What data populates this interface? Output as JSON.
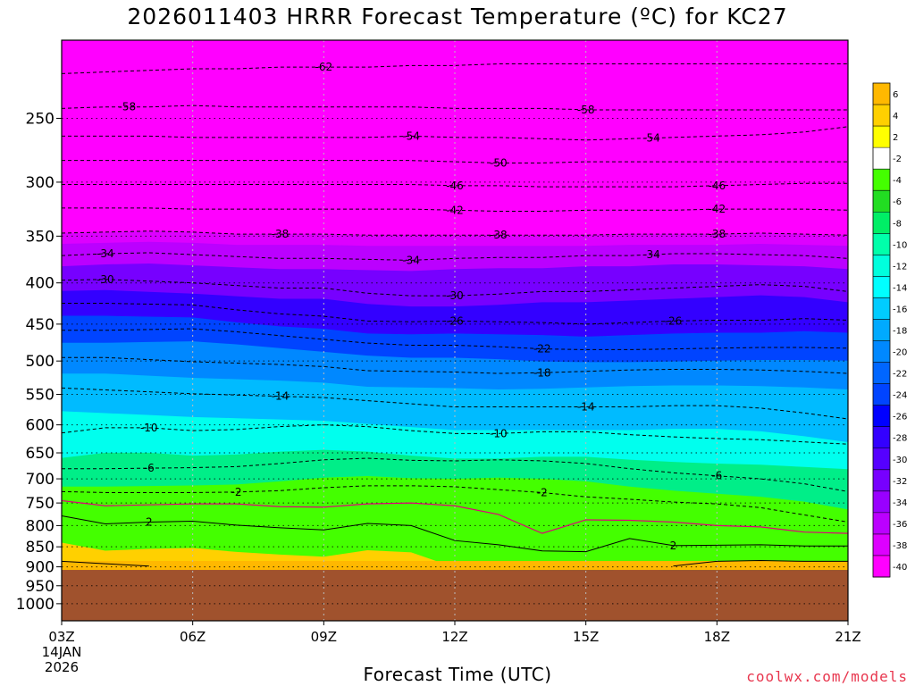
{
  "title": "2026011403 HRRR Forecast Temperature (ºC) for KC27",
  "credit": "coolwx.com/models",
  "chart_data": {
    "type": "heatmap",
    "title": "2026011403 HRRR Forecast Temperature (ºC) for KC27",
    "xlabel": "Forecast Time (UTC)",
    "ylabel": "",
    "x_ticks": [
      "03Z",
      "06Z",
      "09Z",
      "12Z",
      "15Z",
      "18Z",
      "21Z"
    ],
    "x_start_label": [
      "03Z",
      "14JAN",
      "2026"
    ],
    "xlim": [
      3,
      21
    ],
    "y_ticks": [
      250,
      300,
      350,
      400,
      450,
      500,
      550,
      600,
      650,
      700,
      750,
      800,
      850,
      900,
      950,
      1000
    ],
    "ylim_hPa": [
      1050,
      200
    ],
    "y_scale": "log pressure",
    "grid": true,
    "colorbar": {
      "placement": "right",
      "labels": [
        "6",
        "4",
        "2",
        "-2",
        "-4",
        "-6",
        "-8",
        "-10",
        "-12",
        "-14",
        "-16",
        "-18",
        "-20",
        "-22",
        "-24",
        "-26",
        "-28",
        "-30",
        "-32",
        "-34",
        "-36",
        "-38",
        "-40"
      ],
      "colors": [
        "#ffb800",
        "#ffd000",
        "#ffff00",
        "#ffffff",
        "#44ff00",
        "#22dd22",
        "#00ee66",
        "#00ffaa",
        "#00ffdd",
        "#00ffff",
        "#00ccff",
        "#00aaff",
        "#0088ff",
        "#0066ff",
        "#0044ff",
        "#0000ff",
        "#3300ff",
        "#5500ff",
        "#7700ff",
        "#9900ff",
        "#bb00ff",
        "#dd00ff",
        "#ff00ff"
      ]
    },
    "contours": [
      {
        "label": "-62",
        "x": [
          3,
          4,
          5,
          6,
          7,
          8,
          9,
          10,
          11,
          12,
          13,
          14,
          15,
          16,
          17,
          18,
          19,
          20,
          21
        ],
        "y": [
          220,
          219,
          218,
          217,
          217,
          216,
          216,
          216,
          215,
          215,
          214,
          214,
          214,
          214,
          214,
          214,
          214,
          214,
          214
        ]
      },
      {
        "label": "-58",
        "x": [
          3,
          4,
          5,
          6,
          7,
          8,
          9,
          10,
          11,
          12,
          13,
          14,
          15,
          16,
          17,
          18,
          19,
          20,
          21
        ],
        "y": [
          243,
          242,
          242,
          241,
          242,
          242,
          242,
          242,
          242,
          243,
          243,
          243,
          244,
          244,
          244,
          244,
          244,
          244,
          244
        ]
      },
      {
        "label": "-54",
        "x": [
          3,
          4,
          5,
          6,
          7,
          8,
          9,
          10,
          11,
          12,
          13,
          14,
          15,
          16,
          17,
          18,
          19,
          20,
          21
        ],
        "y": [
          263,
          263,
          263,
          264,
          264,
          264,
          264,
          264,
          263,
          264,
          264,
          265,
          266,
          265,
          264,
          263,
          262,
          260,
          256
        ]
      },
      {
        "label": "-50",
        "x": [
          3,
          4,
          5,
          6,
          7,
          8,
          9,
          10,
          11,
          12,
          13,
          14,
          15,
          16,
          17,
          18,
          19,
          20,
          21
        ],
        "y": [
          282,
          282,
          282,
          282,
          282,
          282,
          282,
          282,
          282,
          283,
          284,
          284,
          283,
          283,
          283,
          283,
          283,
          283,
          283
        ]
      },
      {
        "label": "-46",
        "x": [
          3,
          4,
          5,
          6,
          7,
          8,
          9,
          10,
          11,
          12,
          13,
          14,
          15,
          16,
          17,
          18,
          19,
          20,
          21
        ],
        "y": [
          302,
          302,
          302,
          302,
          302,
          302,
          302,
          302,
          302,
          303,
          303,
          304,
          304,
          304,
          304,
          303,
          302,
          301,
          301
        ]
      },
      {
        "label": "-42",
        "x": [
          3,
          4,
          5,
          6,
          7,
          8,
          9,
          10,
          11,
          12,
          13,
          14,
          15,
          16,
          17,
          18,
          19,
          20,
          21
        ],
        "y": [
          323,
          323,
          323,
          324,
          324,
          324,
          324,
          324,
          324,
          325,
          326,
          326,
          325,
          325,
          325,
          324,
          324,
          324,
          325
        ]
      },
      {
        "label": "-38",
        "x": [
          3,
          4,
          5,
          6,
          7,
          8,
          9,
          10,
          11,
          12,
          13,
          14,
          15,
          16,
          17,
          18,
          19,
          20,
          21
        ],
        "y": [
          347,
          346,
          345,
          346,
          348,
          348,
          348,
          349,
          349,
          349,
          349,
          349,
          349,
          348,
          348,
          348,
          347,
          348,
          349
        ]
      },
      {
        "label": "-34",
        "x": [
          3,
          4,
          5,
          6,
          7,
          8,
          9,
          10,
          11,
          12,
          13,
          14,
          15,
          16,
          17,
          18,
          19,
          20,
          21
        ],
        "y": [
          370,
          368,
          367,
          369,
          371,
          373,
          373,
          374,
          375,
          373,
          372,
          372,
          370,
          370,
          368,
          368,
          369,
          370,
          373
        ]
      },
      {
        "label": "-30",
        "x": [
          3,
          4,
          5,
          6,
          7,
          8,
          9,
          10,
          11,
          12,
          13,
          14,
          15,
          16,
          17,
          18,
          19,
          20,
          21
        ],
        "y": [
          397,
          396,
          398,
          400,
          403,
          406,
          406,
          412,
          415,
          415,
          413,
          410,
          410,
          408,
          406,
          404,
          402,
          404,
          410
        ]
      },
      {
        "label": "-26",
        "x": [
          3,
          4,
          5,
          6,
          7,
          8,
          9,
          10,
          11,
          12,
          13,
          14,
          15,
          16,
          17,
          18,
          19,
          20,
          21
        ],
        "y": [
          424,
          424,
          425,
          426,
          432,
          437,
          440,
          446,
          447,
          446,
          447,
          448,
          450,
          448,
          446,
          445,
          445,
          443,
          445
        ]
      },
      {
        "label": "-22",
        "x": [
          3,
          4,
          5,
          6,
          7,
          8,
          9,
          10,
          11,
          12,
          13,
          14,
          15,
          16,
          17,
          18,
          19,
          20,
          21
        ],
        "y": [
          458,
          458,
          457,
          456,
          460,
          465,
          470,
          475,
          478,
          478,
          480,
          483,
          484,
          484,
          483,
          482,
          481,
          481,
          482
        ]
      },
      {
        "label": "-18",
        "x": [
          3,
          4,
          5,
          6,
          7,
          8,
          9,
          10,
          11,
          12,
          13,
          14,
          15,
          16,
          17,
          18,
          19,
          20,
          21
        ],
        "y": [
          495,
          495,
          498,
          501,
          503,
          505,
          508,
          514,
          515,
          516,
          518,
          517,
          515,
          513,
          512,
          512,
          513,
          515,
          518
        ]
      },
      {
        "label": "-14",
        "x": [
          3,
          4,
          5,
          6,
          7,
          8,
          9,
          10,
          11,
          12,
          13,
          14,
          15,
          16,
          17,
          18,
          19,
          20,
          21
        ],
        "y": [
          540,
          543,
          546,
          549,
          551,
          553,
          555,
          560,
          565,
          570,
          570,
          570,
          570,
          570,
          568,
          568,
          572,
          580,
          590
        ]
      },
      {
        "label": "-10",
        "x": [
          3,
          4,
          5,
          6,
          7,
          8,
          9,
          10,
          11,
          12,
          13,
          14,
          15,
          16,
          17,
          18,
          19,
          20,
          21
        ],
        "y": [
          614,
          605,
          605,
          610,
          608,
          603,
          600,
          603,
          610,
          615,
          615,
          612,
          612,
          617,
          621,
          624,
          626,
          630,
          634
        ]
      },
      {
        "label": "-6",
        "x": [
          3,
          4,
          5,
          6,
          7,
          8,
          9,
          10,
          11,
          12,
          13,
          14,
          15,
          16,
          17,
          18,
          19,
          20,
          21
        ],
        "y": [
          680,
          680,
          679,
          678,
          676,
          670,
          663,
          660,
          664,
          665,
          663,
          665,
          670,
          680,
          688,
          694,
          700,
          710,
          726
        ]
      },
      {
        "label": "-2",
        "x": [
          3,
          4,
          5,
          6,
          7,
          8,
          9,
          10,
          11,
          12,
          13,
          14,
          15,
          16,
          17,
          18,
          19,
          20,
          21
        ],
        "y": [
          726,
          728,
          728,
          728,
          727,
          724,
          718,
          714,
          714,
          716,
          722,
          728,
          737,
          742,
          748,
          752,
          760,
          776,
          792
        ]
      },
      {
        "label": "2",
        "x": [
          3,
          4,
          5,
          6,
          7,
          8,
          9,
          10,
          11,
          12,
          13,
          14,
          15,
          16,
          17,
          18,
          19,
          20,
          21
        ],
        "y": [
          778,
          796,
          792,
          790,
          799,
          805,
          810,
          795,
          800,
          835,
          845,
          860,
          862,
          830,
          847,
          846,
          845,
          848,
          848
        ]
      },
      {
        "label": "",
        "x": [
          3,
          4,
          5
        ],
        "y": [
          886,
          892,
          898
        ]
      },
      {
        "label": "",
        "x": [
          17,
          18,
          19,
          20,
          21
        ],
        "y": [
          898,
          886,
          884,
          886,
          886
        ]
      }
    ],
    "freezing_line": {
      "x": [
        3,
        4,
        5,
        6,
        7,
        8,
        9,
        10,
        11,
        12,
        13,
        14,
        15,
        16,
        17,
        18,
        19,
        20,
        21
      ],
      "y": [
        745,
        756,
        754,
        752,
        752,
        758,
        759,
        752,
        750,
        756,
        775,
        818,
        787,
        788,
        792,
        800,
        803,
        815,
        818
      ]
    },
    "terrain_top_hPa": 908
  }
}
